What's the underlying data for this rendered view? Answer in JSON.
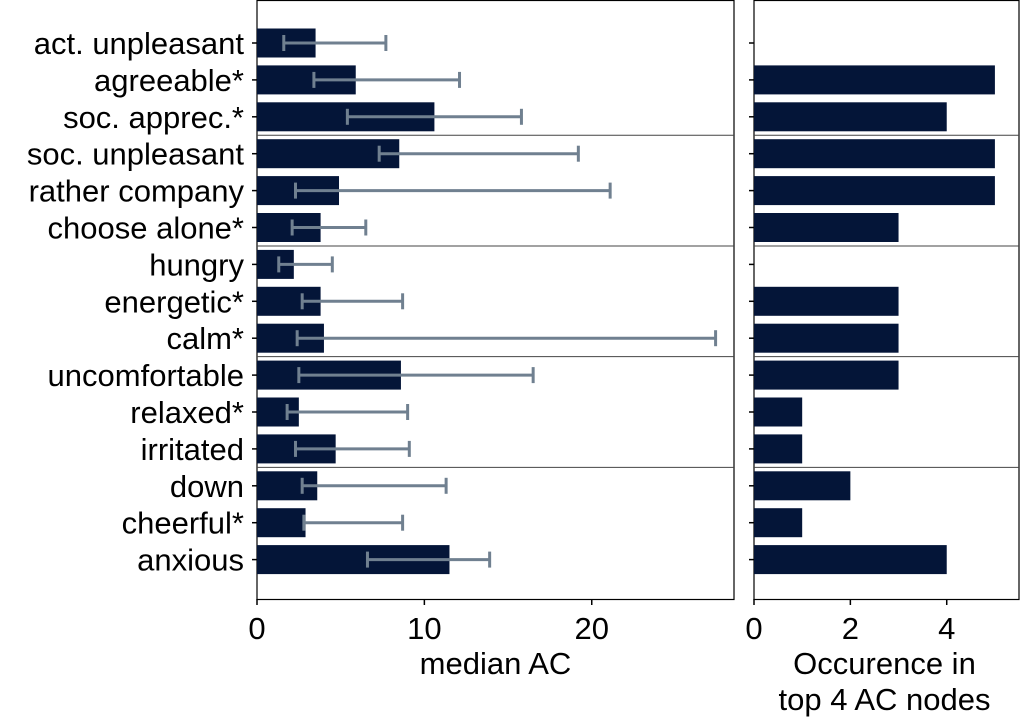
{
  "chart_data": [
    {
      "type": "bar",
      "orientation": "horizontal",
      "xlabel": "median AC",
      "xlim": [
        0,
        28.5
      ],
      "xticks": [
        0,
        10,
        20
      ],
      "categories": [
        "act. unpleasant",
        "agreeable*",
        "soc. apprec.*",
        "soc. unpleasant",
        "rather company",
        "choose alone*",
        "hungry",
        "energetic*",
        "calm*",
        "uncomfortable",
        "relaxed*",
        "irritated",
        "down",
        "cheerful*",
        "anxious"
      ],
      "groups": [
        [
          0,
          2
        ],
        [
          3,
          5
        ],
        [
          6,
          8
        ],
        [
          9,
          11
        ],
        [
          12,
          14
        ]
      ],
      "values": [
        3.5,
        5.9,
        10.6,
        8.5,
        4.9,
        3.8,
        2.2,
        3.8,
        4.0,
        8.6,
        2.5,
        4.7,
        3.6,
        2.9,
        11.5
      ],
      "error_low": [
        1.6,
        3.4,
        5.4,
        7.3,
        2.3,
        2.1,
        1.3,
        2.7,
        2.4,
        2.5,
        1.8,
        2.3,
        2.7,
        2.8,
        6.6
      ],
      "error_high": [
        7.7,
        12.1,
        15.8,
        19.2,
        21.1,
        6.5,
        4.5,
        8.7,
        27.4,
        16.5,
        9.0,
        9.1,
        11.3,
        8.7,
        13.9
      ],
      "bar_color": "#041538",
      "errorbar_color": "#708090"
    },
    {
      "type": "bar",
      "orientation": "horizontal",
      "xlabel": "Occurence in top 4 AC nodes",
      "xlim": [
        0,
        5.5
      ],
      "xticks": [
        0,
        2,
        4
      ],
      "categories": [
        "act. unpleasant",
        "agreeable*",
        "soc. apprec.*",
        "soc. unpleasant",
        "rather company",
        "choose alone*",
        "hungry",
        "energetic*",
        "calm*",
        "uncomfortable",
        "relaxed*",
        "irritated",
        "down",
        "cheerful*",
        "anxious"
      ],
      "values": [
        0,
        5,
        4,
        5,
        5,
        3,
        0,
        3,
        3,
        3,
        1,
        1,
        2,
        1,
        4
      ],
      "bar_color": "#041538"
    }
  ]
}
